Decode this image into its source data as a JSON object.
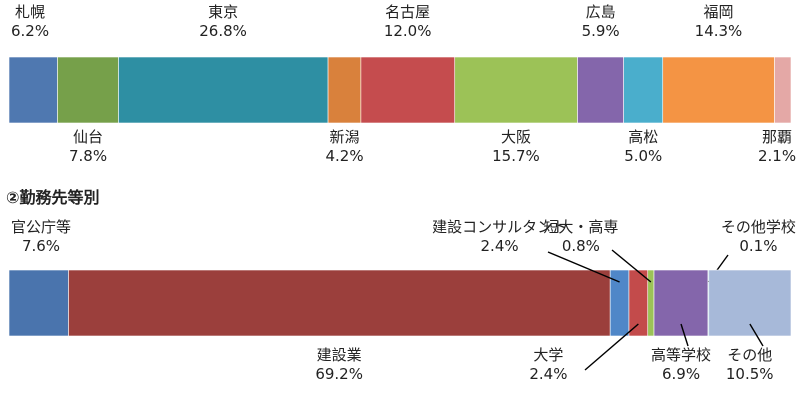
{
  "section_title": "②勤務先等別",
  "chart_data": [
    {
      "type": "bar",
      "stacked": true,
      "orientation": "horizontal",
      "title": "",
      "ylim": [
        0,
        100
      ],
      "series": [
        {
          "name": "札幌",
          "value": 6.2,
          "label_pct": "6.2%",
          "color": "#4f78b0"
        },
        {
          "name": "仙台",
          "value": 7.8,
          "label_pct": "7.8%",
          "color": "#76a04a"
        },
        {
          "name": "東京",
          "value": 26.8,
          "label_pct": "26.8%",
          "color": "#2e8fa3"
        },
        {
          "name": "新潟",
          "value": 4.2,
          "label_pct": "4.2%",
          "color": "#d9813c"
        },
        {
          "name": "名古屋",
          "value": 12.0,
          "label_pct": "12.0%",
          "color": "#c54c4e"
        },
        {
          "name": "大阪",
          "value": 15.7,
          "label_pct": "15.7%",
          "color": "#9cc257"
        },
        {
          "name": "広島",
          "value": 5.9,
          "label_pct": "5.9%",
          "color": "#8466ab"
        },
        {
          "name": "高松",
          "value": 5.0,
          "label_pct": "5.0%",
          "color": "#4aaecc"
        },
        {
          "name": "福岡",
          "value": 14.3,
          "label_pct": "14.3%",
          "color": "#f49444"
        },
        {
          "name": "那覇",
          "value": 2.1,
          "label_pct": "2.1%",
          "color": "#e4a8a6"
        }
      ]
    },
    {
      "type": "bar",
      "stacked": true,
      "orientation": "horizontal",
      "title": "②勤務先等別",
      "ylim": [
        0,
        100
      ],
      "series": [
        {
          "name": "官公庁等",
          "value": 7.6,
          "label_pct": "7.6%",
          "color": "#4a74ad"
        },
        {
          "name": "建設業",
          "value": 69.2,
          "label_pct": "69.2%",
          "color": "#9b3f3c"
        },
        {
          "name": "建設コンサルタント",
          "value": 2.4,
          "label_pct": "2.4%",
          "color": "#4f87c8"
        },
        {
          "name": "大学",
          "value": 2.4,
          "label_pct": "2.4%",
          "color": "#c34b4b"
        },
        {
          "name": "短大・高専",
          "value": 0.8,
          "label_pct": "0.8%",
          "color": "#9cc257"
        },
        {
          "name": "高等学校",
          "value": 6.9,
          "label_pct": "6.9%",
          "color": "#8466ab"
        },
        {
          "name": "その他学校",
          "value": 0.1,
          "label_pct": "0.1%",
          "color": "#4aaecc"
        },
        {
          "name": "その他",
          "value": 10.5,
          "label_pct": "10.5%",
          "color": "#a7b9d9"
        }
      ]
    }
  ]
}
